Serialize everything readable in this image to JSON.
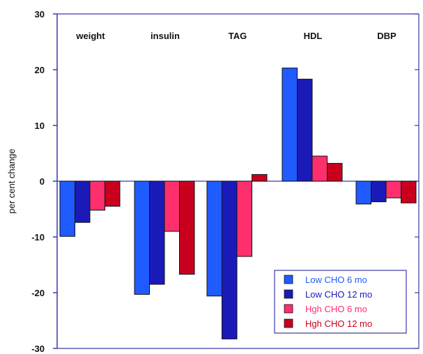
{
  "chart_data": {
    "type": "bar",
    "title": "",
    "xlabel": "",
    "ylabel": "per cent change",
    "ylim": [
      -30,
      30
    ],
    "yticks": [
      30,
      20,
      10,
      0,
      -10,
      -20,
      -30
    ],
    "grid": false,
    "legend_position": "bottom-right",
    "categories": [
      "weight",
      "insulin",
      "TAG",
      "HDL",
      "DBP"
    ],
    "series": [
      {
        "name": "Low CHO 6 mo",
        "color": "#1f5bff",
        "values": [
          -9.9,
          -20.3,
          -20.6,
          20.3,
          -4.1
        ]
      },
      {
        "name": "Low CHO 12 mo",
        "color": "#1a1ab8",
        "values": [
          -7.4,
          -18.5,
          -28.3,
          18.3,
          -3.7
        ]
      },
      {
        "name": "Hgh CHO 6 mo",
        "color": "#ff2f6e",
        "values": [
          -5.2,
          -9.0,
          -13.5,
          4.5,
          -3.0
        ]
      },
      {
        "name": "Hgh CHO 12 mo",
        "color": "#c8001e",
        "values": [
          -4.5,
          -16.7,
          1.2,
          3.2,
          -3.9
        ]
      }
    ]
  }
}
